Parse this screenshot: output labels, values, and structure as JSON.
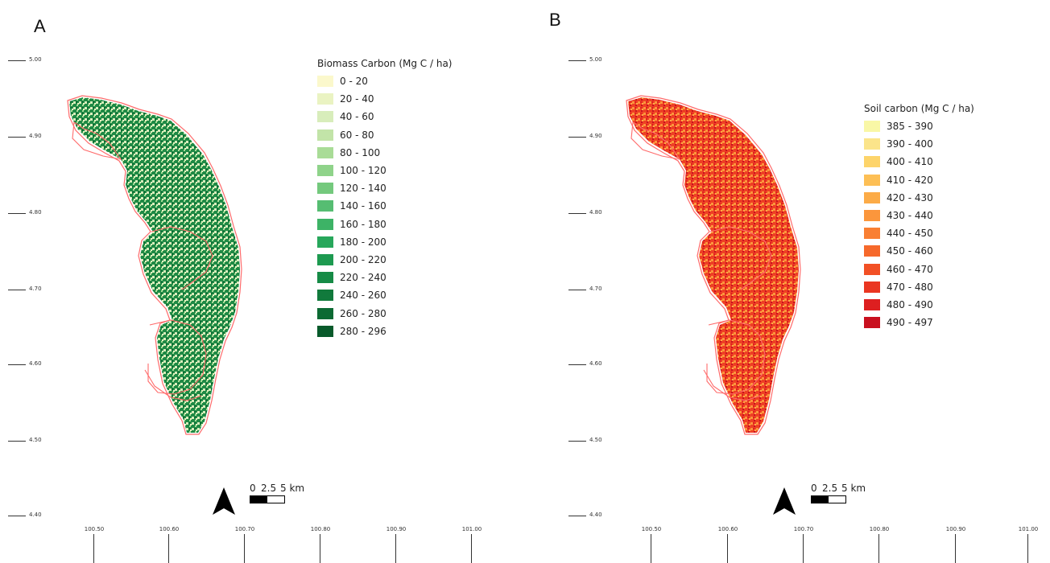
{
  "panels": [
    {
      "letter": "A",
      "legend_title": "Biomass Carbon (Mg C / ha)",
      "legend": [
        {
          "label": "0 - 20",
          "color": "#fbf8cc"
        },
        {
          "label": "20 - 40",
          "color": "#eaf3c2"
        },
        {
          "label": "40 - 60",
          "color": "#d8edbb"
        },
        {
          "label": "60 - 80",
          "color": "#c2e4a8"
        },
        {
          "label": "80 - 100",
          "color": "#a9dc97"
        },
        {
          "label": "100 - 120",
          "color": "#8fd38a"
        },
        {
          "label": "120 - 140",
          "color": "#74c97d"
        },
        {
          "label": "140 - 160",
          "color": "#56bd72"
        },
        {
          "label": "160 - 180",
          "color": "#3db366"
        },
        {
          "label": "180 - 200",
          "color": "#27a75b"
        },
        {
          "label": "200 - 220",
          "color": "#1d9a50"
        },
        {
          "label": "220 - 240",
          "color": "#168b46"
        },
        {
          "label": "240 - 260",
          "color": "#117a3c"
        },
        {
          "label": "260 - 280",
          "color": "#0c6a33"
        },
        {
          "label": "280 - 296",
          "color": "#085a2b"
        }
      ]
    },
    {
      "letter": "B",
      "legend_title": "Soil carbon (Mg C / ha)",
      "legend": [
        {
          "label": "385 - 390",
          "color": "#f9f7a6"
        },
        {
          "label": "390 - 400",
          "color": "#fbe48a"
        },
        {
          "label": "400 - 410",
          "color": "#fdd46a"
        },
        {
          "label": "410 - 420",
          "color": "#fdbf55"
        },
        {
          "label": "420 - 430",
          "color": "#fcab47"
        },
        {
          "label": "430 - 440",
          "color": "#fb963c"
        },
        {
          "label": "440 - 450",
          "color": "#f97f33"
        },
        {
          "label": "450 - 460",
          "color": "#f6692b"
        },
        {
          "label": "460 - 470",
          "color": "#f25025"
        },
        {
          "label": "470 - 480",
          "color": "#ea3621"
        },
        {
          "label": "480 - 490",
          "color": "#dd1f20"
        },
        {
          "label": "490 - 497",
          "color": "#c9101f"
        }
      ]
    }
  ],
  "lat_ticks": [
    "5.00",
    "4.90",
    "4.80",
    "4.70",
    "4.60",
    "4.50",
    "4.40"
  ],
  "lon_ticks": [
    "100.50",
    "100.60",
    "100.70",
    "100.80",
    "100.90",
    "101.00"
  ],
  "scale": {
    "zero": "0",
    "mid": "2.5",
    "end": "5 km"
  },
  "colors": {
    "boundary": "#ff6b6b",
    "biomass_fill": "#1f8a45",
    "soil_fill": "#ee4024"
  }
}
